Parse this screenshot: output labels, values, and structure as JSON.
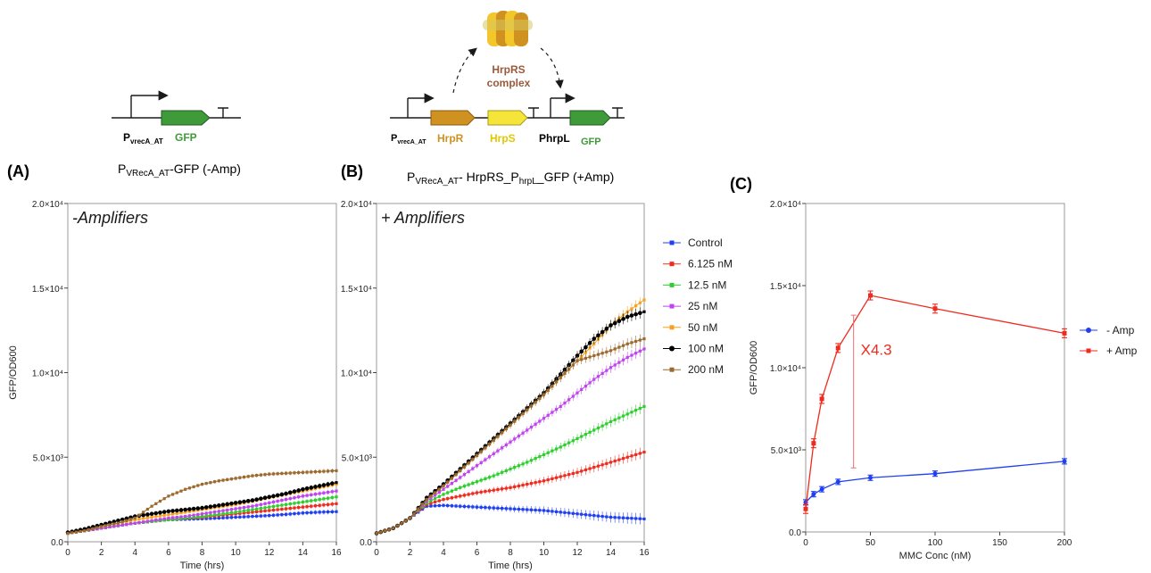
{
  "panel_labels": {
    "a": "(A)",
    "b": "(B)",
    "c": "(C)"
  },
  "construct_a": {
    "promoter": "P",
    "promoter_sub": "vrecA_AT",
    "gene": "GFP",
    "caption_main": "P",
    "caption_sub": "VRecA_AT",
    "caption_rest": "-GFP (-Amp)"
  },
  "construct_b": {
    "promoter": "P",
    "promoter_sub": "vrecA_AT",
    "gene_r": "HrpR",
    "gene_s": "HrpS",
    "promoter2": "PhrpL",
    "gene_gfp": "GFP",
    "complex_line1": "HrpRS",
    "complex_line2": "complex",
    "caption_p": "P",
    "caption_sub": "VRecA_AT",
    "caption_mid": "- HrpRS_P",
    "caption_sub2": "hrpL",
    "caption_end": "_GFP (+Amp)"
  },
  "colors": {
    "control": "#1f3ff0",
    "c6125": "#ee2b1f",
    "c125": "#2fce2f",
    "c25": "#c043f0",
    "c50": "#f7a21e",
    "c100": "#000000",
    "c200": "#9c6a2e",
    "hrpr": "#cf9120",
    "hrps": "#f5e53a",
    "gfp": "#3f9a3a",
    "hrprs_text": "#9a5a3a",
    "amp_minus": "#1f3ff0",
    "amp_plus": "#ee2b1f"
  },
  "chart_data": [
    {
      "type": "line",
      "panel": "A",
      "annotation": "-Amplifiers",
      "xlabel": "Time (hrs)",
      "ylabel": "GFP/OD600",
      "xlim": [
        0,
        16
      ],
      "ylim": [
        0,
        20000
      ],
      "x_ticks": [
        "0",
        "2",
        "4",
        "6",
        "8",
        "10",
        "12",
        "14",
        "16"
      ],
      "y_ticks": [
        "0.0",
        "5.0×10³",
        "1.0×10⁴",
        "1.5×10⁴",
        "2.0×10⁴"
      ],
      "x": [
        0,
        1,
        2,
        3,
        4,
        5,
        6,
        7,
        8,
        9,
        10,
        11,
        12,
        13,
        14,
        15,
        16
      ],
      "series": [
        {
          "name": "Control",
          "color_key": "control",
          "values": [
            500,
            650,
            800,
            950,
            1100,
            1200,
            1300,
            1330,
            1360,
            1400,
            1450,
            1500,
            1550,
            1620,
            1700,
            1750,
            1780
          ]
        },
        {
          "name": "6.125 nM",
          "color_key": "c6125",
          "values": [
            500,
            650,
            800,
            950,
            1100,
            1200,
            1300,
            1380,
            1450,
            1550,
            1650,
            1750,
            1850,
            1950,
            2050,
            2150,
            2250
          ]
        },
        {
          "name": "12.5 nM",
          "color_key": "c125",
          "values": [
            500,
            650,
            800,
            950,
            1100,
            1200,
            1300,
            1400,
            1500,
            1620,
            1750,
            1900,
            2050,
            2200,
            2350,
            2500,
            2650
          ]
        },
        {
          "name": "25 nM",
          "color_key": "c25",
          "values": [
            500,
            650,
            800,
            950,
            1100,
            1250,
            1400,
            1500,
            1650,
            1800,
            1950,
            2100,
            2300,
            2500,
            2700,
            2850,
            3000
          ]
        },
        {
          "name": "50 nM",
          "color_key": "c50",
          "values": [
            500,
            700,
            900,
            1100,
            1300,
            1450,
            1600,
            1750,
            1900,
            2050,
            2200,
            2400,
            2600,
            2800,
            3000,
            3200,
            3400
          ]
        },
        {
          "name": "100 nM",
          "color_key": "c100",
          "values": [
            550,
            750,
            1000,
            1250,
            1500,
            1650,
            1800,
            1900,
            2000,
            2150,
            2300,
            2450,
            2650,
            2850,
            3100,
            3300,
            3500
          ]
        },
        {
          "name": "200 nM",
          "color_key": "c200",
          "values": [
            500,
            650,
            900,
            1100,
            1400,
            2100,
            2700,
            3100,
            3400,
            3600,
            3750,
            3900,
            4000,
            4050,
            4100,
            4150,
            4200
          ]
        }
      ]
    },
    {
      "type": "line",
      "panel": "B",
      "annotation": "+ Amplifiers",
      "xlabel": "Time (hrs)",
      "ylabel": "",
      "xlim": [
        0,
        16
      ],
      "ylim": [
        0,
        20000
      ],
      "x_ticks": [
        "0",
        "2",
        "4",
        "6",
        "8",
        "10",
        "12",
        "14",
        "16"
      ],
      "y_ticks": [
        "0.0",
        "5.0×10³",
        "1.0×10⁴",
        "1.5×10⁴",
        "2.0×10⁴"
      ],
      "x": [
        0,
        1,
        2,
        3,
        4,
        5,
        6,
        7,
        8,
        9,
        10,
        11,
        12,
        13,
        14,
        15,
        16
      ],
      "series": [
        {
          "name": "Control",
          "color_key": "control",
          "values": [
            500,
            800,
            1400,
            2100,
            2150,
            2100,
            2050,
            2000,
            1950,
            1900,
            1850,
            1750,
            1650,
            1550,
            1450,
            1400,
            1350
          ]
        },
        {
          "name": "6.125 nM",
          "color_key": "c6125",
          "values": [
            500,
            800,
            1400,
            2200,
            2500,
            2700,
            2900,
            3050,
            3200,
            3400,
            3600,
            3850,
            4100,
            4400,
            4700,
            5000,
            5300
          ]
        },
        {
          "name": "12.5 nM",
          "color_key": "c125",
          "values": [
            500,
            800,
            1400,
            2300,
            2800,
            3200,
            3550,
            3900,
            4300,
            4700,
            5150,
            5600,
            6100,
            6600,
            7100,
            7550,
            8000
          ]
        },
        {
          "name": "25 nM",
          "color_key": "c25",
          "values": [
            500,
            800,
            1400,
            2400,
            3100,
            3800,
            4500,
            5200,
            5900,
            6600,
            7300,
            8000,
            8800,
            9600,
            10300,
            10900,
            11400
          ]
        },
        {
          "name": "50 nM",
          "color_key": "c50",
          "values": [
            500,
            800,
            1400,
            2500,
            3300,
            4200,
            5100,
            6000,
            6900,
            7800,
            8700,
            9700,
            10700,
            11700,
            12800,
            13600,
            14300
          ]
        },
        {
          "name": "100 nM",
          "color_key": "c100",
          "values": [
            500,
            800,
            1400,
            2600,
            3400,
            4300,
            5200,
            6100,
            7000,
            7900,
            8800,
            9900,
            11000,
            12000,
            12800,
            13300,
            13600
          ]
        },
        {
          "name": "200 nM",
          "color_key": "c200",
          "values": [
            500,
            800,
            1400,
            2500,
            3300,
            4200,
            5100,
            6000,
            6900,
            7800,
            8700,
            9700,
            10700,
            11000,
            11300,
            11700,
            12000
          ]
        }
      ],
      "legend": [
        "Control",
        "6.125 nM",
        "12.5 nM",
        "25 nM",
        "50 nM",
        "100 nM",
        "200 nM"
      ],
      "legend_placement": "right"
    },
    {
      "type": "line",
      "panel": "C",
      "xlabel": "MMC Conc (nM)",
      "ylabel": "GFP/OD600",
      "xlim": [
        0,
        200
      ],
      "ylim": [
        0,
        20000
      ],
      "x_ticks": [
        "0",
        "50",
        "100",
        "150",
        "200"
      ],
      "y_ticks": [
        "0.0",
        "5.0×10³",
        "1.0×10⁴",
        "1.5×10⁴",
        "2.0×10⁴"
      ],
      "x": [
        0,
        6.125,
        12.5,
        25,
        50,
        100,
        200
      ],
      "series": [
        {
          "name": "- Amp",
          "color_key": "amp_minus",
          "values": [
            1800,
            2300,
            2600,
            3050,
            3300,
            3550,
            4300
          ]
        },
        {
          "name": "+ Amp",
          "color_key": "amp_plus",
          "values": [
            1400,
            5400,
            8100,
            11200,
            14400,
            13600,
            12100
          ]
        }
      ],
      "legend": [
        "- Amp",
        "+ Amp"
      ],
      "legend_placement": "right",
      "annotation": "X4.3"
    }
  ]
}
